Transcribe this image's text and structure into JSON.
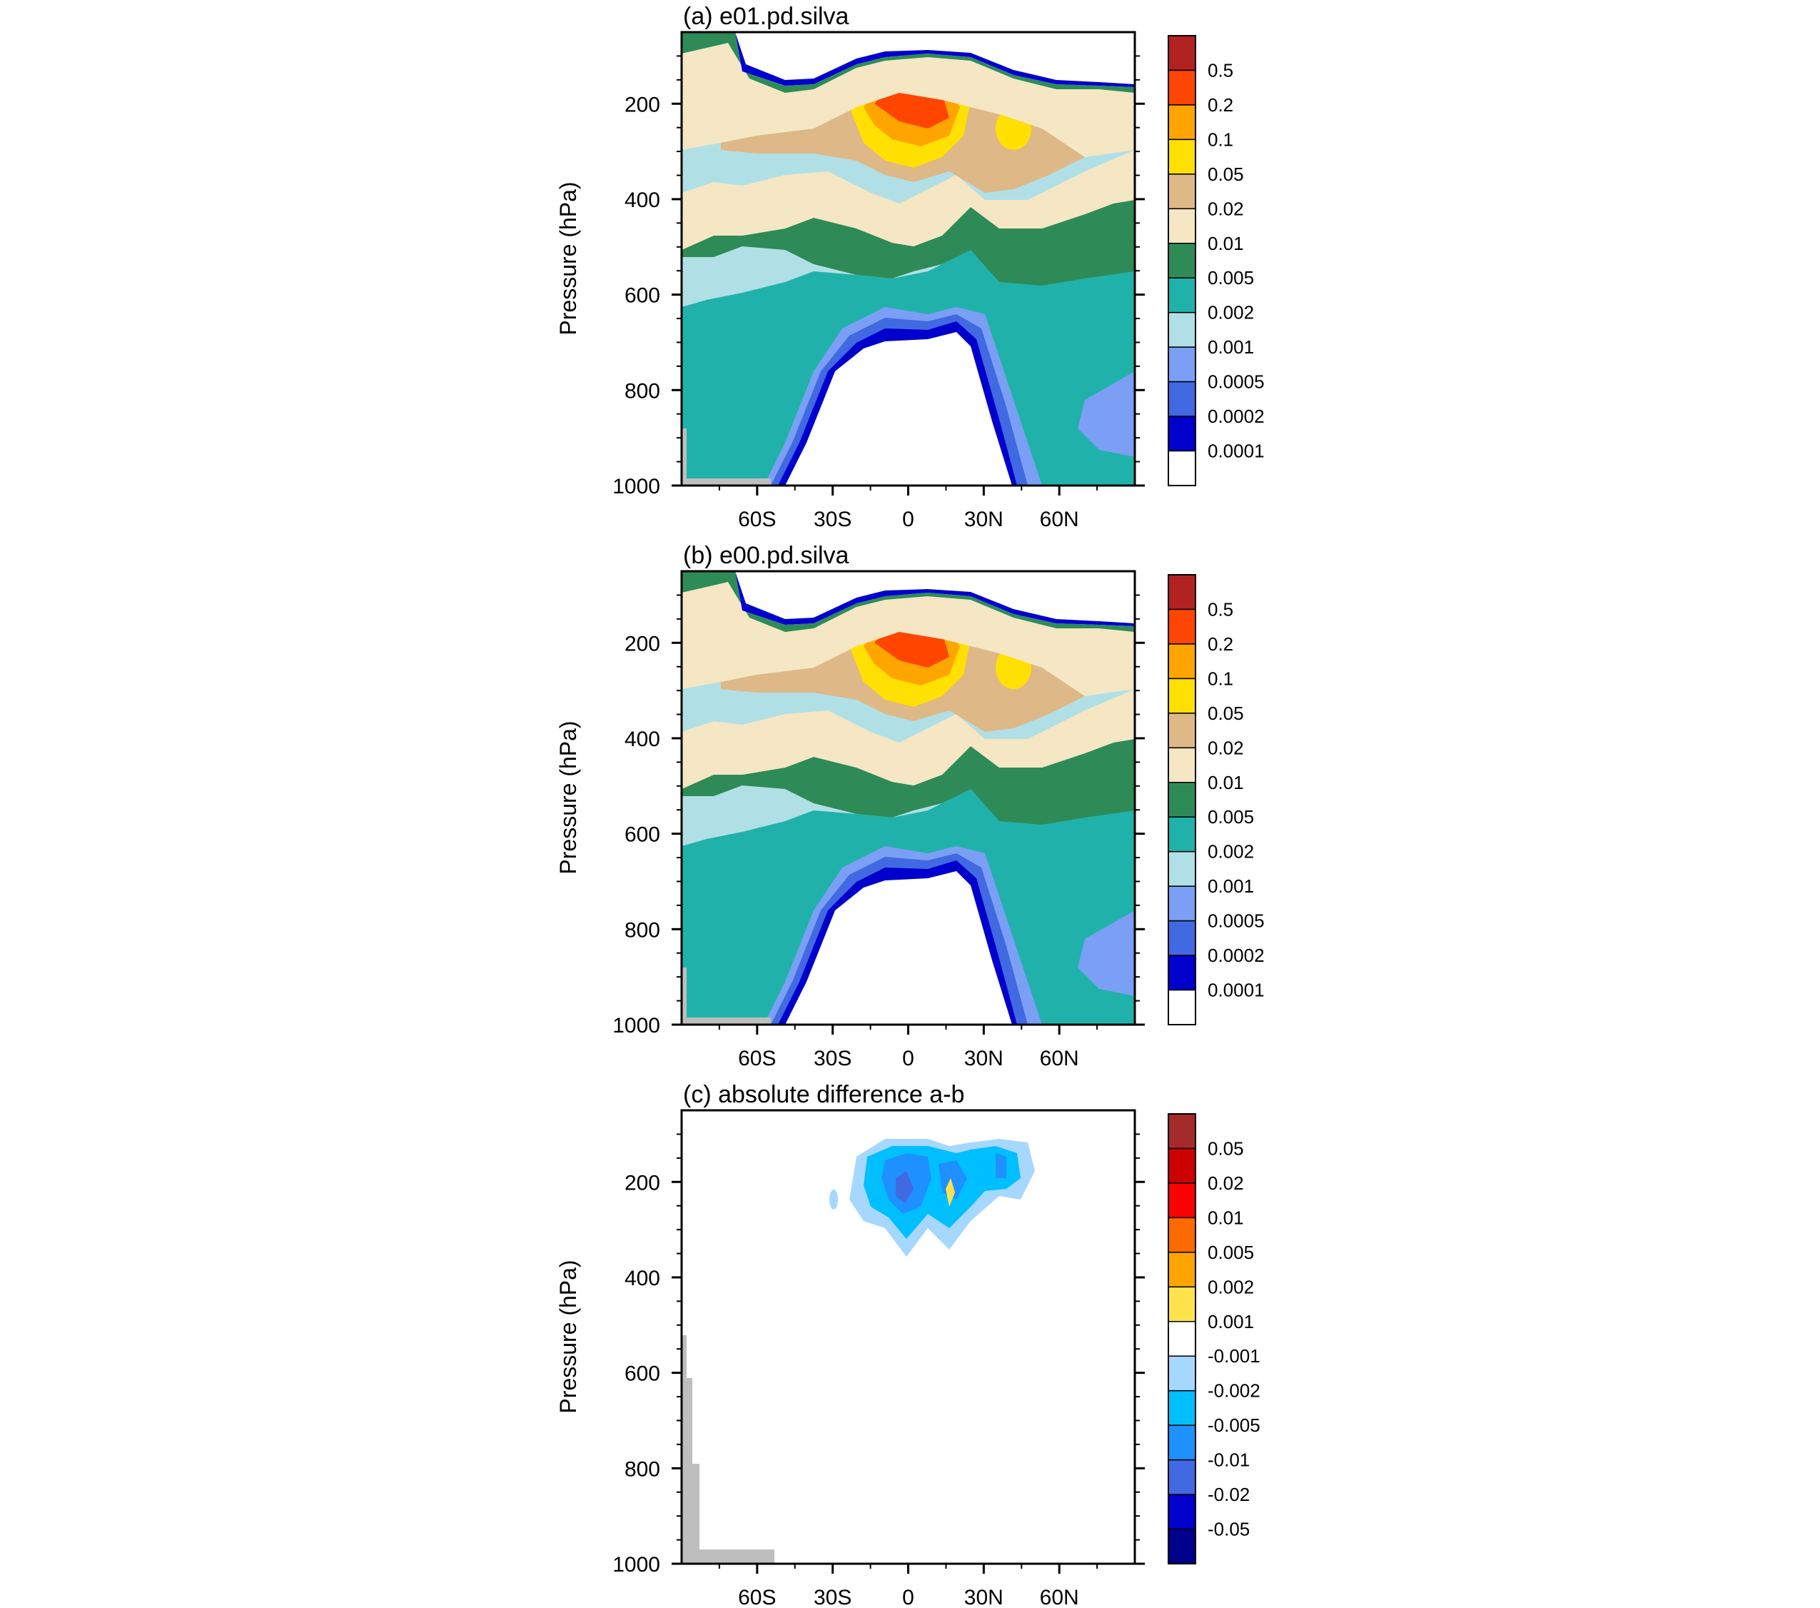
{
  "chart_data": [
    {
      "type": "contour",
      "title": "(a) e01.pd.silva",
      "ylabel": "Pressure (hPa)",
      "y_ticks": [
        200,
        400,
        600,
        800,
        1000
      ],
      "x_ticks": [
        "60S",
        "30S",
        "0",
        "30N",
        "60N"
      ],
      "x_tick_values": [
        -60,
        -30,
        0,
        30,
        60
      ],
      "xlim": [
        -90,
        90
      ],
      "ylim": [
        50,
        1000
      ],
      "y_axis_inverted": true,
      "colorbar": {
        "labels": [
          "0.5",
          "0.2",
          "0.1",
          "0.05",
          "0.02",
          "0.01",
          "0.005",
          "0.002",
          "0.001",
          "0.0005",
          "0.0002",
          "0.0001"
        ],
        "colors": [
          "#b22222",
          "#ff4500",
          "#ffa500",
          "#ffe000",
          "#deb887",
          "#f5e6c4",
          "#2e8b57",
          "#20b2aa",
          "#b0e0e6",
          "#7b9ff5",
          "#4169e1",
          "#0000cd",
          "#ffffff"
        ]
      },
      "shaded_topography_color": "#bebebe",
      "field": "Tropics-centred maximum near 0 at ~150 hPa (>0.2); secondary maximum near 30N at ~250 hPa (0.05-0.1); values decrease downward to <0.0001 below ~650 hPa between 60S and 45N"
    },
    {
      "type": "contour",
      "title": "(b) e00.pd.silva",
      "ylabel": "Pressure (hPa)",
      "y_ticks": [
        200,
        400,
        600,
        800,
        1000
      ],
      "x_ticks": [
        "60S",
        "30S",
        "0",
        "30N",
        "60N"
      ],
      "x_tick_values": [
        -60,
        -30,
        0,
        30,
        60
      ],
      "xlim": [
        -90,
        90
      ],
      "ylim": [
        50,
        1000
      ],
      "y_axis_inverted": true,
      "colorbar": {
        "labels": [
          "0.5",
          "0.2",
          "0.1",
          "0.05",
          "0.02",
          "0.01",
          "0.005",
          "0.002",
          "0.001",
          "0.0005",
          "0.0002",
          "0.0001"
        ],
        "colors": [
          "#b22222",
          "#ff4500",
          "#ffa500",
          "#ffe000",
          "#deb887",
          "#f5e6c4",
          "#2e8b57",
          "#20b2aa",
          "#b0e0e6",
          "#7b9ff5",
          "#4169e1",
          "#0000cd",
          "#ffffff"
        ]
      },
      "shaded_topography_color": "#bebebe",
      "field": "Nearly identical to (a)"
    },
    {
      "type": "contour",
      "title": "(c) absolute difference a-b",
      "ylabel": "Pressure (hPa)",
      "y_ticks": [
        200,
        400,
        600,
        800,
        1000
      ],
      "x_ticks": [
        "60S",
        "30S",
        "0",
        "30N",
        "60N"
      ],
      "x_tick_values": [
        -60,
        -30,
        0,
        30,
        60
      ],
      "xlim": [
        -90,
        90
      ],
      "ylim": [
        50,
        1000
      ],
      "y_axis_inverted": true,
      "colorbar": {
        "labels": [
          "0.05",
          "0.02",
          "0.01",
          "0.005",
          "0.002",
          "0.001",
          "-0.001",
          "-0.002",
          "-0.005",
          "-0.01",
          "-0.02",
          "-0.05"
        ],
        "colors": [
          "#a52a2a",
          "#cd0000",
          "#ff0000",
          "#ff6a00",
          "#ffa500",
          "#ffe34d",
          "#ffffff",
          "#a6d8ff",
          "#00bfff",
          "#1e90ff",
          "#4169e1",
          "#0000cd",
          "#00008b"
        ]
      },
      "shaded_topography_color": "#bebebe",
      "field": "Mostly white (|diff| < 0.001); negative patches (-0.001 to -0.01) between ~20S and 35N at 100-250 hPa"
    }
  ]
}
